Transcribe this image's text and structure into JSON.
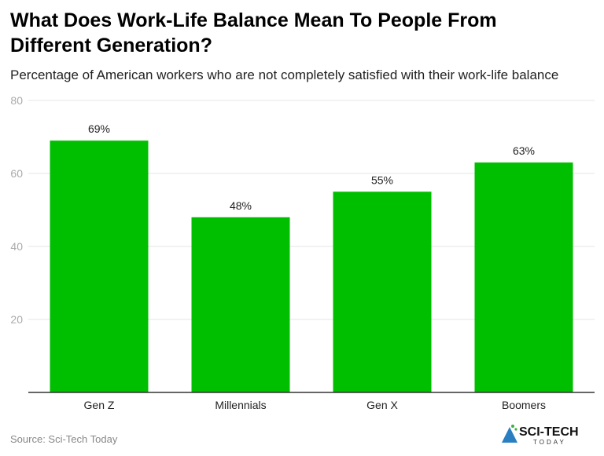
{
  "title": "What Does Work-Life Balance Mean To People From Different Generation?",
  "subtitle": "Percentage of American workers who are not completely satisfied with their work-life balance",
  "source": "Source: Sci-Tech Today",
  "logo": {
    "line1": "SCI-TECH",
    "line2": "TODAY"
  },
  "colors": {
    "bar": "#00BF00",
    "grid": "#E5E5E5",
    "axis": "#333333"
  },
  "chart_data": {
    "type": "bar",
    "categories": [
      "Gen Z",
      "Millennials",
      "Gen X",
      "Boomers"
    ],
    "values": [
      69,
      48,
      55,
      63
    ],
    "data_labels": [
      "69%",
      "48%",
      "55%",
      "63%"
    ],
    "ylim": [
      0,
      80
    ],
    "yticks": [
      20,
      40,
      60,
      80
    ],
    "grid": true,
    "xlabel": "",
    "ylabel": ""
  }
}
